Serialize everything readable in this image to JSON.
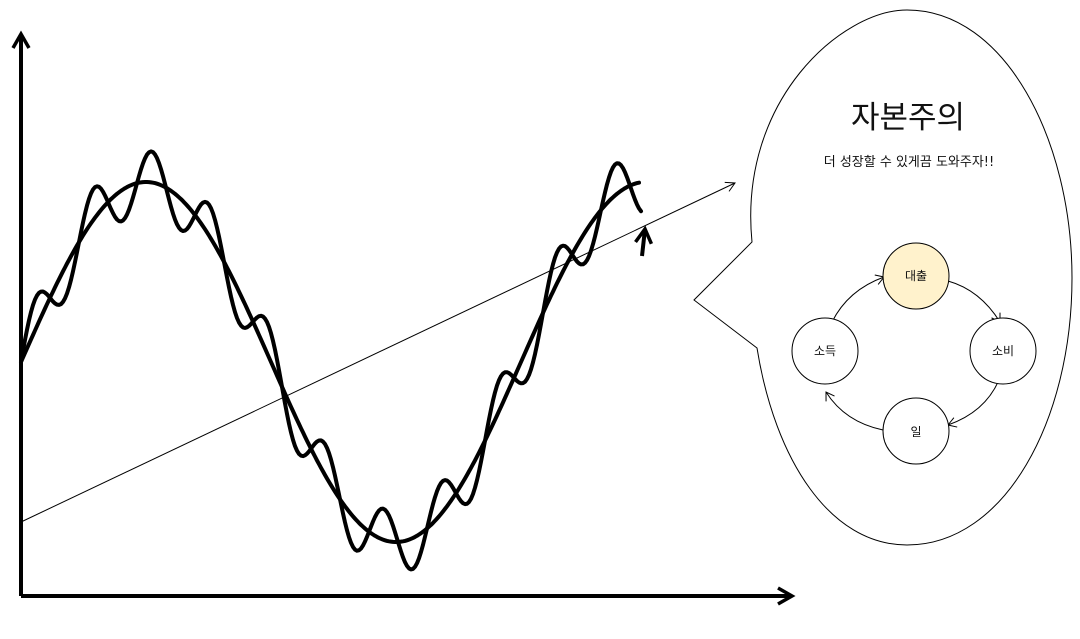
{
  "bubble": {
    "title": "자본주의",
    "subtitle": "더 성장할 수 있게끔 도와주자!!"
  },
  "cycle": {
    "nodes": [
      {
        "label": "대출",
        "fill": "#fff2cc"
      },
      {
        "label": "소비",
        "fill": "#ffffff"
      },
      {
        "label": "일",
        "fill": "#ffffff"
      },
      {
        "label": "소득",
        "fill": "#ffffff"
      }
    ]
  },
  "colors": {
    "stroke": "#000000",
    "background": "#ffffff",
    "highlight": "#fff2cc"
  }
}
